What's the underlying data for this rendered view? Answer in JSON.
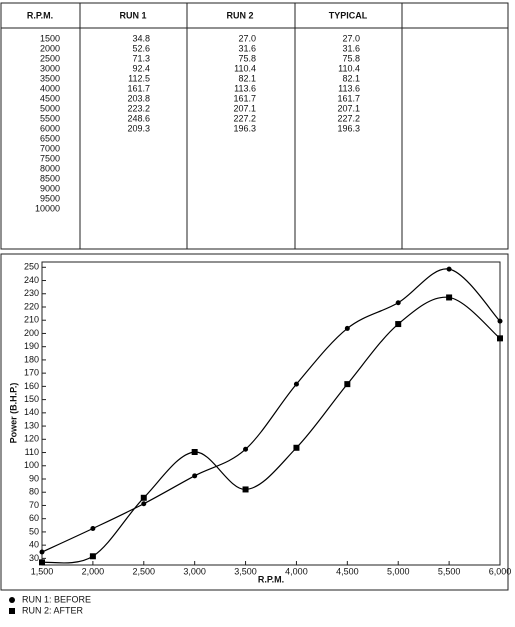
{
  "table": {
    "columns": [
      "R.P.M.",
      "RUN 1",
      "RUN 2",
      "TYPICAL"
    ],
    "rows": [
      [
        "1500",
        "34.8",
        "27.0",
        "27.0"
      ],
      [
        "2000",
        "52.6",
        "31.6",
        "31.6"
      ],
      [
        "2500",
        "71.3",
        "75.8",
        "75.8"
      ],
      [
        "3000",
        "92.4",
        "110.4",
        "110.4"
      ],
      [
        "3500",
        "112.5",
        "82.1",
        "82.1"
      ],
      [
        "4000",
        "161.7",
        "113.6",
        "113.6"
      ],
      [
        "4500",
        "203.8",
        "161.7",
        "161.7"
      ],
      [
        "5000",
        "223.2",
        "207.1",
        "207.1"
      ],
      [
        "5500",
        "248.6",
        "227.2",
        "227.2"
      ],
      [
        "6000",
        "209.3",
        "196.3",
        "196.3"
      ],
      [
        "6500"
      ],
      [
        "7000"
      ],
      [
        "7500"
      ],
      [
        "8000"
      ],
      [
        "8500"
      ],
      [
        "9000"
      ],
      [
        "9500"
      ],
      [
        "10000"
      ]
    ]
  },
  "chart_data": {
    "type": "line",
    "x_label": "R.P.M.",
    "y_label": "Power (B.H.P.)",
    "x": [
      1500,
      2000,
      2500,
      3000,
      3500,
      4000,
      4500,
      5000,
      5500,
      6000
    ],
    "series": [
      {
        "name": "RUN 1: BEFORE",
        "color": "#000000",
        "marker": "circle",
        "values": [
          34.8,
          52.6,
          71.3,
          92.4,
          112.5,
          161.7,
          203.8,
          223.2,
          248.6,
          209.3
        ]
      },
      {
        "name": "RUN 2: AFTER",
        "color": "#000000",
        "marker": "square",
        "values": [
          27.0,
          31.6,
          75.8,
          110.4,
          82.1,
          113.6,
          161.7,
          207.1,
          227.2,
          196.3
        ]
      }
    ],
    "xlim": [
      1500,
      6000
    ],
    "xticks": [
      {
        "value": 1500,
        "label": "1,500"
      },
      {
        "value": 2000,
        "label": "2,000"
      },
      {
        "value": 2500,
        "label": "2,500"
      },
      {
        "value": 3000,
        "label": "3,000"
      },
      {
        "value": 3500,
        "label": "3,500"
      },
      {
        "value": 4000,
        "label": "4,000"
      },
      {
        "value": 4500,
        "label": "4,500"
      },
      {
        "value": 5000,
        "label": "5,000"
      },
      {
        "value": 5500,
        "label": "5,500"
      },
      {
        "value": 6000,
        "label": "6,000"
      }
    ],
    "ylim": [
      25,
      254
    ],
    "yticks": [
      30,
      40,
      50,
      60,
      70,
      80,
      90,
      100,
      110,
      120,
      130,
      140,
      150,
      160,
      170,
      180,
      190,
      200,
      210,
      220,
      230,
      240,
      250
    ],
    "grid": false
  }
}
